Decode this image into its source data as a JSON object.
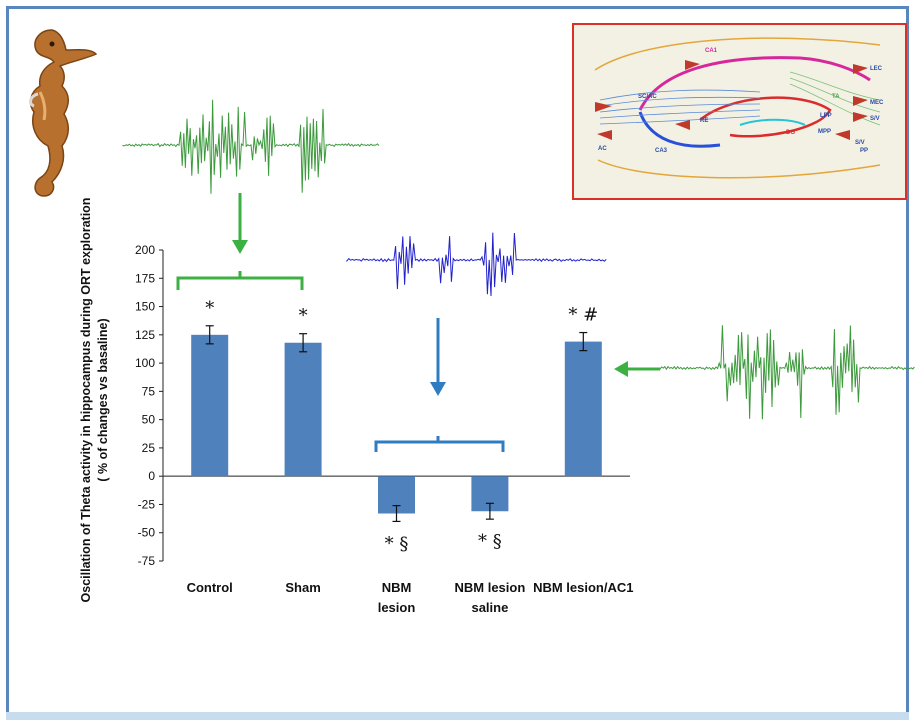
{
  "chart_data": {
    "type": "bar",
    "categories": [
      "Control",
      "Sham",
      "NBM\nlesion",
      "NBM lesion\nsaline",
      "NBM lesion/AC1"
    ],
    "values": [
      125,
      118,
      -33,
      -31,
      119
    ],
    "errors": [
      8,
      8,
      7,
      7,
      8
    ],
    "annotations": [
      "*",
      "*",
      "* §",
      "* §",
      "* #"
    ],
    "ylabel": "Oscillation of  Theta activity in hippocampus  during  ORT exploration",
    "ylabel2": "( % of changes vs basaline)",
    "ylim": [
      -75,
      200
    ],
    "yticks": [
      200,
      175,
      150,
      125,
      100,
      75,
      50,
      25,
      0,
      -25,
      -50,
      -75
    ],
    "bar_color": "#4f81bd",
    "grid": false
  },
  "diagram": {
    "labels": [
      "CA1",
      "SC/AC",
      "AC",
      "CA3",
      "RE",
      "DG",
      "LPP",
      "MPP",
      "LEC",
      "MEC",
      "S/V",
      "S/V",
      "PP",
      "TA"
    ]
  },
  "colors": {
    "frame": "#5a86c0",
    "green_trace": "#3c9a3c",
    "blue_trace": "#2222cc",
    "green_arrow": "#3cb043",
    "blue_arrow": "#2f7dc0",
    "diagram_border": "#d9302a"
  },
  "icons": [
    "seahorse-icon"
  ]
}
